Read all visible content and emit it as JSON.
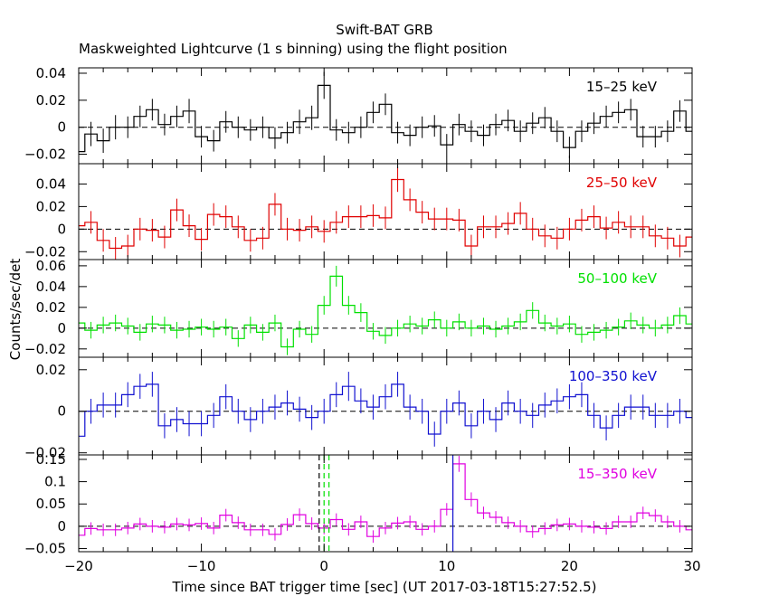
{
  "title": "Swift-BAT GRB",
  "subtitle": "Maskweighted Lightcurve (1 s binning) using the flight position",
  "xlabel": "Time since BAT trigger time [sec] (UT 2017-03-18T15:27:52.5)",
  "ylabel": "Counts/sec/det",
  "chart_data": [
    {
      "type": "line",
      "name": "15-25 keV",
      "color": "#000000",
      "xlim": [
        -20,
        30
      ],
      "ylim": [
        -0.027,
        0.044
      ],
      "yticks": [
        -0.02,
        0,
        0.02,
        0.04
      ],
      "ytick_labels": [
        "−0.02",
        "0",
        "0.02",
        "0.04"
      ],
      "x_start": -20,
      "bin": 1,
      "values": [
        -0.018,
        -0.005,
        -0.01,
        0.0,
        0.0,
        0.008,
        0.013,
        0.002,
        0.008,
        0.012,
        -0.007,
        -0.01,
        0.004,
        0.0,
        -0.002,
        0.0,
        -0.008,
        -0.004,
        0.004,
        0.007,
        0.031,
        -0.002,
        -0.004,
        0.0,
        0.011,
        0.017,
        -0.004,
        -0.006,
        0.0,
        0.001,
        -0.013,
        0.002,
        -0.003,
        -0.006,
        0.002,
        0.005,
        -0.003,
        0.003,
        0.007,
        -0.003,
        -0.015,
        -0.003,
        0.003,
        0.008,
        0.011,
        0.013,
        -0.007,
        -0.007,
        -0.003,
        0.012,
        -0.003
      ],
      "errors": [
        0.007,
        0.009,
        0.009,
        0.009,
        0.008,
        0.008,
        0.008,
        0.008,
        0.008,
        0.009,
        0.008,
        0.008,
        0.008,
        0.008,
        0.008,
        0.008,
        0.008,
        0.008,
        0.009,
        0.009,
        0.01,
        0.008,
        0.008,
        0.008,
        0.008,
        0.008,
        0.008,
        0.008,
        0.008,
        0.008,
        0.008,
        0.008,
        0.008,
        0.008,
        0.008,
        0.008,
        0.008,
        0.008,
        0.008,
        0.008,
        0.008,
        0.008,
        0.008,
        0.008,
        0.008,
        0.008,
        0.008,
        0.008,
        0.008,
        0.008,
        0.008
      ]
    },
    {
      "type": "line",
      "name": "25-50 keV",
      "color": "#e00000",
      "xlim": [
        -20,
        30
      ],
      "ylim": [
        -0.027,
        0.058
      ],
      "yticks": [
        -0.02,
        0,
        0.02,
        0.04
      ],
      "ytick_labels": [
        "−0.02",
        "0",
        "0.02",
        "0.04"
      ],
      "x_start": -20,
      "bin": 1,
      "values": [
        0.003,
        0.006,
        -0.01,
        -0.017,
        -0.015,
        0.0,
        -0.001,
        -0.007,
        0.017,
        0.003,
        -0.009,
        0.013,
        0.011,
        0.002,
        -0.01,
        -0.008,
        0.022,
        0.0,
        -0.001,
        0.002,
        -0.002,
        0.006,
        0.011,
        0.011,
        0.012,
        0.01,
        0.044,
        0.026,
        0.015,
        0.009,
        0.009,
        0.008,
        -0.015,
        0.002,
        0.002,
        0.005,
        0.014,
        0.0,
        -0.006,
        -0.008,
        0.0,
        0.008,
        0.011,
        0.001,
        0.006,
        0.002,
        0.002,
        -0.006,
        -0.008,
        -0.015,
        -0.007
      ],
      "errors": [
        0.01,
        0.01,
        0.01,
        0.01,
        0.01,
        0.01,
        0.01,
        0.01,
        0.01,
        0.01,
        0.01,
        0.01,
        0.01,
        0.01,
        0.01,
        0.01,
        0.01,
        0.01,
        0.01,
        0.01,
        0.01,
        0.01,
        0.01,
        0.01,
        0.01,
        0.01,
        0.011,
        0.01,
        0.01,
        0.01,
        0.01,
        0.01,
        0.01,
        0.01,
        0.01,
        0.01,
        0.01,
        0.01,
        0.01,
        0.01,
        0.01,
        0.01,
        0.01,
        0.01,
        0.01,
        0.01,
        0.01,
        0.01,
        0.01,
        0.01,
        0.01
      ]
    },
    {
      "type": "line",
      "name": "50-100 keV",
      "color": "#00e000",
      "xlim": [
        -20,
        30
      ],
      "ylim": [
        -0.028,
        0.066
      ],
      "yticks": [
        -0.02,
        0,
        0.02,
        0.04,
        0.06
      ],
      "ytick_labels": [
        "−0.02",
        "0",
        "0.02",
        "0.04",
        "0.06"
      ],
      "x_start": -20,
      "bin": 1,
      "values": [
        0.005,
        -0.002,
        0.003,
        0.005,
        0.002,
        -0.004,
        0.004,
        0.003,
        -0.002,
        -0.001,
        0.001,
        -0.001,
        0.001,
        -0.01,
        0.003,
        -0.004,
        0.005,
        -0.018,
        -0.001,
        -0.006,
        0.022,
        0.05,
        0.022,
        0.015,
        -0.003,
        -0.007,
        0.0,
        0.004,
        0.002,
        0.008,
        0.0,
        0.006,
        0.0,
        0.002,
        -0.001,
        0.002,
        0.006,
        0.017,
        0.005,
        0.002,
        0.004,
        -0.006,
        -0.004,
        -0.002,
        0.001,
        0.007,
        0.003,
        0.0,
        0.003,
        0.012,
        0.004
      ],
      "errors": [
        0.008,
        0.008,
        0.008,
        0.008,
        0.008,
        0.008,
        0.008,
        0.008,
        0.008,
        0.008,
        0.008,
        0.008,
        0.008,
        0.008,
        0.008,
        0.008,
        0.008,
        0.008,
        0.008,
        0.008,
        0.009,
        0.01,
        0.009,
        0.009,
        0.008,
        0.008,
        0.008,
        0.008,
        0.008,
        0.008,
        0.008,
        0.008,
        0.008,
        0.008,
        0.008,
        0.008,
        0.008,
        0.008,
        0.008,
        0.008,
        0.008,
        0.008,
        0.008,
        0.008,
        0.008,
        0.008,
        0.008,
        0.008,
        0.008,
        0.008,
        0.008
      ]
    },
    {
      "type": "line",
      "name": "100-350 keV",
      "color": "#1010d0",
      "xlim": [
        -20,
        30
      ],
      "ylim": [
        -0.021,
        0.026
      ],
      "yticks": [
        -0.02,
        0,
        0.02
      ],
      "ytick_labels": [
        "−0.02",
        "0",
        "0.02"
      ],
      "x_start": -20,
      "bin": 1,
      "values": [
        -0.012,
        0.0,
        0.003,
        0.003,
        0.008,
        0.012,
        0.013,
        -0.007,
        -0.004,
        -0.006,
        -0.006,
        -0.002,
        0.007,
        0.0,
        -0.004,
        0.0,
        0.002,
        0.004,
        0.001,
        -0.003,
        0.0,
        0.008,
        0.012,
        0.005,
        0.002,
        0.007,
        0.013,
        0.002,
        0.0,
        -0.011,
        0.0,
        0.004,
        -0.007,
        0.0,
        -0.004,
        0.004,
        0.0,
        -0.002,
        0.003,
        0.005,
        0.007,
        0.008,
        -0.002,
        -0.008,
        -0.002,
        0.002,
        0.002,
        -0.002,
        -0.002,
        0.0,
        -0.003
      ],
      "errors": [
        0.006,
        0.006,
        0.006,
        0.006,
        0.006,
        0.006,
        0.006,
        0.006,
        0.006,
        0.006,
        0.006,
        0.006,
        0.006,
        0.006,
        0.006,
        0.006,
        0.006,
        0.006,
        0.006,
        0.006,
        0.006,
        0.006,
        0.007,
        0.006,
        0.006,
        0.006,
        0.006,
        0.006,
        0.006,
        0.006,
        0.006,
        0.006,
        0.006,
        0.006,
        0.006,
        0.006,
        0.006,
        0.006,
        0.006,
        0.006,
        0.006,
        0.006,
        0.006,
        0.006,
        0.006,
        0.006,
        0.006,
        0.006,
        0.006,
        0.006,
        0.006
      ]
    },
    {
      "type": "line",
      "name": "15-350 keV",
      "color": "#e000e0",
      "xlim": [
        -20,
        30
      ],
      "ylim": [
        -0.057,
        0.16
      ],
      "yticks": [
        -0.05,
        0,
        0.05,
        0.1,
        0.15
      ],
      "ytick_labels": [
        "−0.05",
        "0",
        "0.05",
        "0.1",
        "0.15"
      ],
      "x_start": -20,
      "bin": 1,
      "values": [
        -0.02,
        -0.005,
        -0.008,
        -0.008,
        -0.004,
        0.005,
        0.0,
        -0.002,
        0.005,
        0.003,
        0.006,
        -0.004,
        0.025,
        0.008,
        -0.008,
        -0.008,
        -0.018,
        0.004,
        0.026,
        0.006,
        -0.004,
        0.015,
        -0.007,
        0.01,
        -0.023,
        -0.004,
        0.007,
        0.01,
        -0.007,
        0.0,
        0.038,
        0.14,
        0.06,
        0.03,
        0.02,
        0.008,
        0.0,
        -0.012,
        -0.005,
        0.003,
        0.005,
        0.0,
        -0.002,
        -0.005,
        0.01,
        0.01,
        0.03,
        0.024,
        0.01,
        0.0,
        -0.008
      ],
      "errors": [
        0.014,
        0.014,
        0.014,
        0.014,
        0.014,
        0.014,
        0.014,
        0.014,
        0.014,
        0.014,
        0.014,
        0.014,
        0.014,
        0.014,
        0.014,
        0.014,
        0.014,
        0.014,
        0.014,
        0.014,
        0.014,
        0.014,
        0.014,
        0.014,
        0.014,
        0.014,
        0.014,
        0.014,
        0.014,
        0.014,
        0.014,
        0.018,
        0.016,
        0.014,
        0.014,
        0.014,
        0.014,
        0.014,
        0.014,
        0.014,
        0.014,
        0.014,
        0.014,
        0.014,
        0.014,
        0.014,
        0.014,
        0.014,
        0.014,
        0.014,
        0.014
      ],
      "vlines": [
        {
          "x": -0.4,
          "style": "dashed",
          "color": "#000000"
        },
        {
          "x": 0.0,
          "style": "dashed",
          "color": "#00e000"
        },
        {
          "x": 0.4,
          "style": "dashed",
          "color": "#00e000"
        },
        {
          "x": 10.5,
          "style": "solid",
          "color": "#1010d0"
        }
      ]
    }
  ],
  "xticks": [
    -20,
    -10,
    0,
    10,
    20,
    30
  ],
  "xtick_labels": [
    "−20",
    "−10",
    "0",
    "10",
    "20",
    "30"
  ],
  "grid": false
}
